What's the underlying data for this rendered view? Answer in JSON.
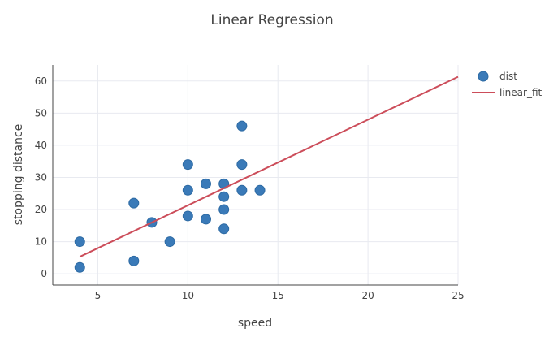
{
  "chart_data": {
    "type": "scatter",
    "title": "Linear Regression",
    "xlabel": "speed",
    "ylabel": "stopping distance",
    "xlim": [
      2.5,
      25
    ],
    "ylim": [
      -3.5,
      65
    ],
    "x_ticks": [
      5,
      10,
      15,
      20,
      25
    ],
    "y_ticks": [
      0,
      10,
      20,
      30,
      40,
      50,
      60
    ],
    "grid": true,
    "legend_position": "top-right",
    "series": [
      {
        "name": "dist",
        "kind": "markers",
        "color": "#3a7ab8",
        "points": [
          {
            "x": 4,
            "y": 2
          },
          {
            "x": 4,
            "y": 10
          },
          {
            "x": 7,
            "y": 4
          },
          {
            "x": 7,
            "y": 22
          },
          {
            "x": 8,
            "y": 16
          },
          {
            "x": 9,
            "y": 10
          },
          {
            "x": 10,
            "y": 18
          },
          {
            "x": 10,
            "y": 26
          },
          {
            "x": 10,
            "y": 34
          },
          {
            "x": 11,
            "y": 17
          },
          {
            "x": 11,
            "y": 28
          },
          {
            "x": 12,
            "y": 14
          },
          {
            "x": 12,
            "y": 20
          },
          {
            "x": 12,
            "y": 24
          },
          {
            "x": 12,
            "y": 28
          },
          {
            "x": 13,
            "y": 26
          },
          {
            "x": 13,
            "y": 34
          },
          {
            "x": 13,
            "y": 46
          },
          {
            "x": 14,
            "y": 26
          }
        ]
      },
      {
        "name": "linear_fit",
        "kind": "line",
        "color": "#cc4d5a",
        "points": [
          {
            "x": 4,
            "y": 5.3
          },
          {
            "x": 25,
            "y": 61.3
          }
        ]
      }
    ]
  }
}
